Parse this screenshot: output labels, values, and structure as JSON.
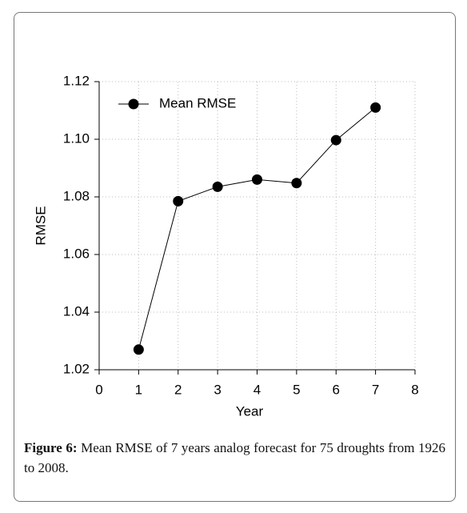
{
  "chart_data": {
    "type": "line",
    "x_label": "Year",
    "y_label": "RMSE",
    "x": [
      1,
      2,
      3,
      4,
      5,
      6,
      7
    ],
    "series": [
      {
        "name": "Mean RMSE",
        "color": "#000000",
        "values": [
          1.027,
          1.0785,
          1.0835,
          1.086,
          1.0848,
          1.0997,
          1.111
        ]
      }
    ],
    "xlim": [
      0,
      8
    ],
    "xticks": [
      0,
      1,
      2,
      3,
      4,
      5,
      6,
      7,
      8
    ],
    "ylim": [
      1.02,
      1.12
    ],
    "yticks": [
      1.02,
      1.04,
      1.06,
      1.08,
      {
        "value": 1.1,
        "label": "1.10"
      },
      1.12
    ],
    "grid": true,
    "legend": "upper left"
  },
  "caption": {
    "label": "Figure 6:",
    "text": "Mean RMSE of 7 years analog forecast for 75 droughts from 1926 to 2008."
  }
}
